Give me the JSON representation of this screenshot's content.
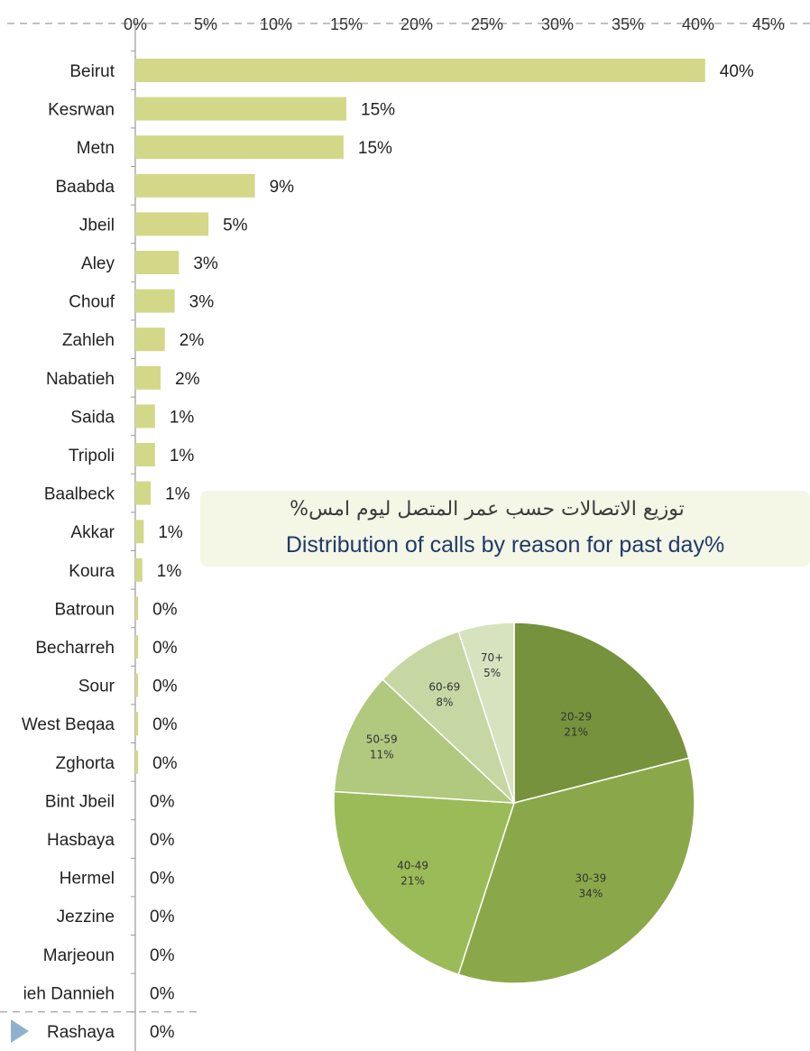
{
  "chart_data": [
    {
      "type": "bar",
      "orientation": "horizontal",
      "categories": [
        "Beirut",
        "Kesrwan",
        "Metn",
        "Baabda",
        "Jbeil",
        "Aley",
        "Chouf",
        "Zahleh",
        "Nabatieh",
        "Saida",
        "Tripoli",
        "Baalbeck",
        "Akkar",
        "Koura",
        "Batroun",
        "Becharreh",
        "Sour",
        "West Beqaa",
        "Zghorta",
        "Bint Jbeil",
        "Hasbaya",
        "Hermel",
        "Jezzine",
        "Marjeoun",
        "Minieh Dannieh",
        "Rashaya"
      ],
      "category_labels": [
        "Beirut",
        "Kesrwan",
        "Metn",
        "Baabda",
        "Jbeil",
        "Aley",
        "Chouf",
        "Zahleh",
        "Nabatieh",
        "Saida",
        "Tripoli",
        "Baalbeck",
        "Akkar",
        "Koura",
        "Batroun",
        "Becharreh",
        "Sour",
        "West Beqaa",
        "Zghorta",
        "Bint Jbeil",
        "Hasbaya",
        "Hermel",
        "Jezzine",
        "Marjeoun",
        "ieh Dannieh",
        "Rashaya"
      ],
      "values": [
        40.5,
        15,
        14.8,
        8.5,
        5.2,
        3.1,
        2.8,
        2.1,
        1.8,
        1.4,
        1.4,
        1.1,
        0.6,
        0.5,
        0.2,
        0.2,
        0.2,
        0.2,
        0.2,
        0,
        0,
        0,
        0,
        0,
        0,
        0
      ],
      "data_labels": [
        "40%",
        "15%",
        "15%",
        "9%",
        "5%",
        "3%",
        "3%",
        "2%",
        "2%",
        "1%",
        "1%",
        "1%",
        "1%",
        "1%",
        "0%",
        "0%",
        "0%",
        "0%",
        "0%",
        "0%",
        "0%",
        "0%",
        "0%",
        "0%",
        "0%",
        "0%"
      ],
      "xlim": [
        0,
        45
      ],
      "x_ticks": [
        0,
        5,
        10,
        15,
        20,
        25,
        30,
        35,
        40,
        45
      ],
      "x_tick_labels": [
        "0%",
        "5%",
        "10%",
        "15%",
        "20%",
        "25%",
        "30%",
        "35%",
        "40%",
        "45%"
      ],
      "axis_position": "top",
      "grid": "dashed-horizontal",
      "bar_color": "#d2d888"
    },
    {
      "type": "pie",
      "title_ar": "توزيع الاتصالات حسب عمر المتصل ليوم امس%",
      "title_en": "Distribution of calls by reason for past day%",
      "labels": [
        "20-29",
        "30-39",
        "40-49",
        "50-59",
        "60-69",
        "70+"
      ],
      "values": [
        21,
        34,
        21,
        11,
        8,
        5
      ],
      "value_labels": [
        "21%",
        "34%",
        "21%",
        "11%",
        "8%",
        "5%"
      ],
      "colors": [
        "#76923c",
        "#8aa84a",
        "#9bbb59",
        "#b1c87f",
        "#c6d7a4",
        "#d7e3bf"
      ]
    }
  ],
  "legend_marker_color": "#8fb1cf"
}
